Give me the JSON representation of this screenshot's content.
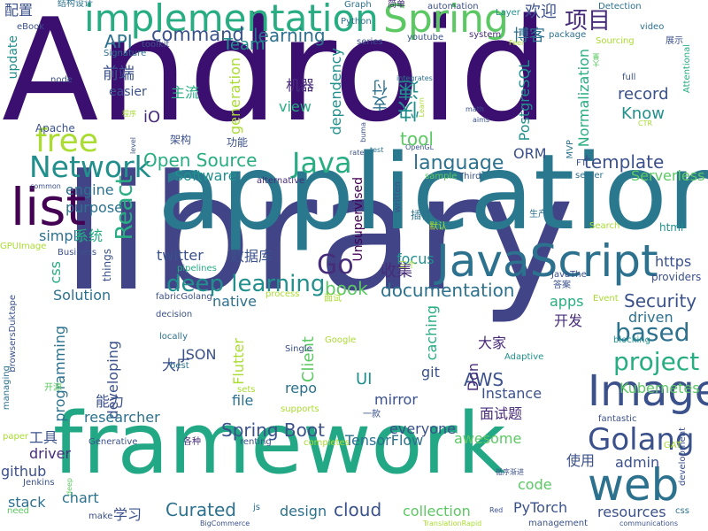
{
  "palette": {
    "dark_purple": "#472c7a",
    "indigo": "#3b518b",
    "blue": "#2c718e",
    "teal": "#21908d",
    "green": "#27ad81",
    "light_green": "#5cc863",
    "lime": "#aadc32",
    "deep": "#440154"
  },
  "words": [
    {
      "text": "Android",
      "color": "#3b0f70"
    },
    {
      "text": "library",
      "color": "#414487"
    },
    {
      "text": "application",
      "color": "#2a788e"
    },
    {
      "text": "framework",
      "color": "#22a884"
    },
    {
      "text": "JavaScript",
      "color": "#2c718e"
    },
    {
      "text": "implementation",
      "color": "#27ad81"
    },
    {
      "text": "list",
      "color": "#440154"
    },
    {
      "text": "Network",
      "color": "#21908d"
    },
    {
      "text": "Image",
      "color": "#3b518b"
    },
    {
      "text": "web",
      "color": "#2c718e"
    },
    {
      "text": "Spring",
      "color": "#5cc863"
    },
    {
      "text": "free",
      "color": "#aadc32"
    },
    {
      "text": "Golang",
      "color": "#3b518b"
    },
    {
      "text": "project",
      "color": "#27ad81"
    },
    {
      "text": "Java",
      "color": "#27ad81"
    },
    {
      "text": "Go",
      "color": "#472c7a"
    },
    {
      "text": "based",
      "color": "#2c718e"
    },
    {
      "text": "deep learning",
      "color": "#21908d"
    },
    {
      "text": "项目",
      "color": "#472c7a"
    },
    {
      "text": "command",
      "color": "#3b518b"
    },
    {
      "text": "React",
      "color": "#27ad81"
    },
    {
      "text": "language",
      "color": "#2c718e"
    },
    {
      "text": "template",
      "color": "#3b518b"
    },
    {
      "text": "Open Source",
      "color": "#27ad81"
    },
    {
      "text": "Security",
      "color": "#3b518b"
    },
    {
      "text": "Spring Boot",
      "color": "#3b518b"
    },
    {
      "text": "Curated",
      "color": "#2c718e"
    },
    {
      "text": "documentation",
      "color": "#2c718e"
    },
    {
      "text": "AWS",
      "color": "#3b518b"
    },
    {
      "text": "book",
      "color": "#5cc863"
    },
    {
      "text": "API",
      "color": "#2c718e"
    },
    {
      "text": "learning",
      "color": "#2c718e"
    },
    {
      "text": "Team",
      "color": "#21908d"
    },
    {
      "text": "欢迎",
      "color": "#3b518b"
    },
    {
      "text": "Layer",
      "color": "#21908d"
    },
    {
      "text": "automation",
      "color": "#3b518b"
    },
    {
      "text": "Graph",
      "color": "#2c718e"
    },
    {
      "text": "简单",
      "color": "#472c7a"
    },
    {
      "text": "配置",
      "color": "#3b518b"
    },
    {
      "text": "结构设计",
      "color": "#2c718e"
    },
    {
      "text": "eBook",
      "color": "#3b518b"
    },
    {
      "text": "update",
      "color": "#21908d"
    },
    {
      "text": "Detection",
      "color": "#2c718e"
    },
    {
      "text": "video",
      "color": "#2c718e"
    },
    {
      "text": "Python",
      "color": "#2c718e"
    },
    {
      "text": "youtube",
      "color": "#3b518b"
    },
    {
      "text": "series",
      "color": "#3b518b"
    },
    {
      "text": "system",
      "color": "#472c7a"
    },
    {
      "text": "博客",
      "color": "#2c718e"
    },
    {
      "text": "package",
      "color": "#2c718e"
    },
    {
      "text": "展示",
      "color": "#3b518b"
    },
    {
      "text": "Sourcing",
      "color": "#aadc32"
    },
    {
      "text": "toolkit",
      "color": "#3b518b"
    },
    {
      "text": "Signature",
      "color": "#2c718e"
    },
    {
      "text": "前端",
      "color": "#3b518b"
    },
    {
      "text": "easier",
      "color": "#3b518b"
    },
    {
      "text": "node",
      "color": "#3b518b"
    },
    {
      "text": "机器",
      "color": "#472c7a"
    },
    {
      "text": "integrates",
      "color": "#2c718e"
    },
    {
      "text": "full",
      "color": "#3b518b"
    },
    {
      "text": "Attentional",
      "color": "#27ad81"
    },
    {
      "text": "主流",
      "color": "#27ad81"
    },
    {
      "text": "generation",
      "color": "#aadc32"
    },
    {
      "text": "view",
      "color": "#27ad81"
    },
    {
      "text": "dependency",
      "color": "#21908d"
    },
    {
      "text": "支付",
      "color": "#2c718e"
    },
    {
      "text": "快速",
      "color": "#21908d"
    },
    {
      "text": "PostgreSQL",
      "color": "#21908d"
    },
    {
      "text": "Normalization",
      "color": "#27ad81"
    },
    {
      "text": "record",
      "color": "#3b518b"
    },
    {
      "text": "Know",
      "color": "#21908d"
    },
    {
      "text": "iO",
      "color": "#472c7a"
    },
    {
      "text": "Apache",
      "color": "#3b518b"
    },
    {
      "text": "程序",
      "color": "#aadc32"
    },
    {
      "text": "架构",
      "color": "#3b518b"
    },
    {
      "text": "功能",
      "color": "#3b518b"
    },
    {
      "text": "OpenGL",
      "color": "#3b518b"
    },
    {
      "text": "test",
      "color": "#2c718e"
    },
    {
      "text": "tool",
      "color": "#5cc863"
    },
    {
      "text": "MVP",
      "color": "#2c718e"
    },
    {
      "text": "FT",
      "color": "#3b518b"
    },
    {
      "text": "ORM",
      "color": "#3b518b"
    },
    {
      "text": "Software",
      "color": "#21908d"
    },
    {
      "text": "alternative",
      "color": "#472c7a"
    },
    {
      "text": "sample",
      "color": "#5cc863"
    },
    {
      "text": "Third",
      "color": "#3b518b"
    },
    {
      "text": "server",
      "color": "#2c718e"
    },
    {
      "text": "Serverless",
      "color": "#5cc863"
    },
    {
      "text": "engine",
      "color": "#2c718e"
    },
    {
      "text": "purpose",
      "color": "#2c718e"
    },
    {
      "text": "simple",
      "color": "#2c718e"
    },
    {
      "text": "系统",
      "color": "#27ad81"
    },
    {
      "text": "数据库",
      "color": "#3b518b"
    },
    {
      "text": "twitter",
      "color": "#3b518b"
    },
    {
      "text": "Unsupervised",
      "color": "#440154"
    },
    {
      "text": "written",
      "color": "#3b518b"
    },
    {
      "text": "插件",
      "color": "#2c718e"
    },
    {
      "text": "生产",
      "color": "#2c718e"
    },
    {
      "text": "默认",
      "color": "#aadc32"
    },
    {
      "text": "html",
      "color": "#21908d"
    },
    {
      "text": "Search",
      "color": "#aadc32"
    },
    {
      "text": "https",
      "color": "#3b518b"
    },
    {
      "text": "providers",
      "color": "#3b518b"
    },
    {
      "text": "focus",
      "color": "#21908d"
    },
    {
      "text": "收集",
      "color": "#472c7a"
    },
    {
      "text": "三个",
      "color": "#aadc32"
    },
    {
      "text": "JavaThe",
      "color": "#3b518b"
    },
    {
      "text": "css",
      "color": "#27ad81"
    },
    {
      "text": "Solution",
      "color": "#2c718e"
    },
    {
      "text": "things",
      "color": "#3b518b"
    },
    {
      "text": "pipelines",
      "color": "#27ad81"
    },
    {
      "text": "fabricGolang",
      "color": "#3b518b"
    },
    {
      "text": "process",
      "color": "#aadc32"
    },
    {
      "text": "native",
      "color": "#2c718e"
    },
    {
      "text": "面试",
      "color": "#aadc32"
    },
    {
      "text": "apps",
      "color": "#27ad81"
    },
    {
      "text": "答案",
      "color": "#3b518b"
    },
    {
      "text": "Event",
      "color": "#aadc32"
    },
    {
      "text": "driven",
      "color": "#2c718e"
    },
    {
      "text": "开发",
      "color": "#472c7a"
    },
    {
      "text": "GPUImage",
      "color": "#aadc32"
    },
    {
      "text": "Business",
      "color": "#3b518b"
    },
    {
      "text": "decision",
      "color": "#3b518b"
    },
    {
      "text": "browsersDuktape",
      "color": "#3b518b"
    },
    {
      "text": "programming",
      "color": "#2c718e"
    },
    {
      "text": "Client",
      "color": "#5cc863"
    },
    {
      "text": "locally",
      "color": "#2c718e"
    },
    {
      "text": "Google",
      "color": "#aadc32"
    },
    {
      "text": "caching",
      "color": "#27ad81"
    },
    {
      "text": "大家",
      "color": "#472c7a"
    },
    {
      "text": "Adaptive",
      "color": "#21908d"
    },
    {
      "text": "blocking",
      "color": "#21908d"
    },
    {
      "text": "JSON",
      "color": "#3b518b"
    },
    {
      "text": "大厂",
      "color": "#3b518b"
    },
    {
      "text": "Single",
      "color": "#3b518b"
    },
    {
      "text": "Flutter",
      "color": "#aadc32"
    },
    {
      "text": "developing",
      "color": "#3b518b"
    },
    {
      "text": "best",
      "color": "#2c718e"
    },
    {
      "text": "UI",
      "color": "#21908d"
    },
    {
      "text": "sets",
      "color": "#aadc32"
    },
    {
      "text": "repo",
      "color": "#2c718e"
    },
    {
      "text": "git",
      "color": "#3b518b"
    },
    {
      "text": "Don",
      "color": "#472c7a"
    },
    {
      "text": "Instance",
      "color": "#3b518b"
    },
    {
      "text": "Kubernetes",
      "color": "#5cc863"
    },
    {
      "text": "能力",
      "color": "#3b518b"
    },
    {
      "text": "managing",
      "color": "#2c718e"
    },
    {
      "text": "开源",
      "color": "#5cc863"
    },
    {
      "text": "file",
      "color": "#2c718e"
    },
    {
      "text": "researcher",
      "color": "#2c718e"
    },
    {
      "text": "supports",
      "color": "#aadc32"
    },
    {
      "text": "mirror",
      "color": "#3b518b"
    },
    {
      "text": "面试题",
      "color": "#472c7a"
    },
    {
      "text": "fantastic",
      "color": "#3b518b"
    },
    {
      "text": "GAT",
      "color": "#aadc32"
    },
    {
      "text": "paper",
      "color": "#aadc32"
    },
    {
      "text": "工具",
      "color": "#3b518b"
    },
    {
      "text": "Generative",
      "color": "#3b518b"
    },
    {
      "text": "各种",
      "color": "#472c7a"
    },
    {
      "text": "renting",
      "color": "#3b518b"
    },
    {
      "text": "一款",
      "color": "#3b518b"
    },
    {
      "text": "everyone",
      "color": "#3b518b"
    },
    {
      "text": "awesome",
      "color": "#5cc863"
    },
    {
      "text": "TensorFlow",
      "color": "#2c718e"
    },
    {
      "text": "driver",
      "color": "#472c7a"
    },
    {
      "text": "github",
      "color": "#3b518b"
    },
    {
      "text": "completes",
      "color": "#aadc32"
    },
    {
      "text": "使用",
      "color": "#3b518b"
    },
    {
      "text": "admin",
      "color": "#3b518b"
    },
    {
      "text": "development",
      "color": "#3b518b"
    },
    {
      "text": "Jenkins",
      "color": "#3b518b"
    },
    {
      "text": "stack",
      "color": "#2c718e"
    },
    {
      "text": "need",
      "color": "#5cc863"
    },
    {
      "text": "chart",
      "color": "#2c718e"
    },
    {
      "text": "make",
      "color": "#3b518b"
    },
    {
      "text": "学习",
      "color": "#3b518b"
    },
    {
      "text": "js",
      "color": "#2c718e"
    },
    {
      "text": "design",
      "color": "#2c718e"
    },
    {
      "text": "cloud",
      "color": "#3b518b"
    },
    {
      "text": "collection",
      "color": "#5cc863"
    },
    {
      "text": "PyTorch",
      "color": "#3b518b"
    },
    {
      "text": "resources",
      "color": "#3b518b"
    },
    {
      "text": "css",
      "color": "#2c718e"
    },
    {
      "text": "code",
      "color": "#5cc863"
    },
    {
      "text": "循序渐进",
      "color": "#3b518b"
    },
    {
      "text": "deep",
      "color": "#5cc863"
    },
    {
      "text": "BigCommerce",
      "color": "#3b518b"
    },
    {
      "text": "TranslationRapid",
      "color": "#aadc32"
    },
    {
      "text": "Red",
      "color": "#3b518b"
    },
    {
      "text": "management",
      "color": "#3b518b"
    },
    {
      "text": "communications",
      "color": "#3b518b"
    },
    {
      "text": "math",
      "color": "#3b518b"
    },
    {
      "text": "aims",
      "color": "#3b518b"
    },
    {
      "text": "Learn",
      "color": "#aadc32"
    },
    {
      "text": "buma",
      "color": "#3b518b"
    },
    {
      "text": "rate",
      "color": "#3b518b"
    },
    {
      "text": "common",
      "color": "#3b518b"
    },
    {
      "text": "level",
      "color": "#3b518b"
    },
    {
      "text": "CTR",
      "color": "#aadc32"
    },
    {
      "text": "Feel",
      "color": "#aadc32"
    },
    {
      "text": "大量",
      "color": "#5cc863"
    }
  ]
}
